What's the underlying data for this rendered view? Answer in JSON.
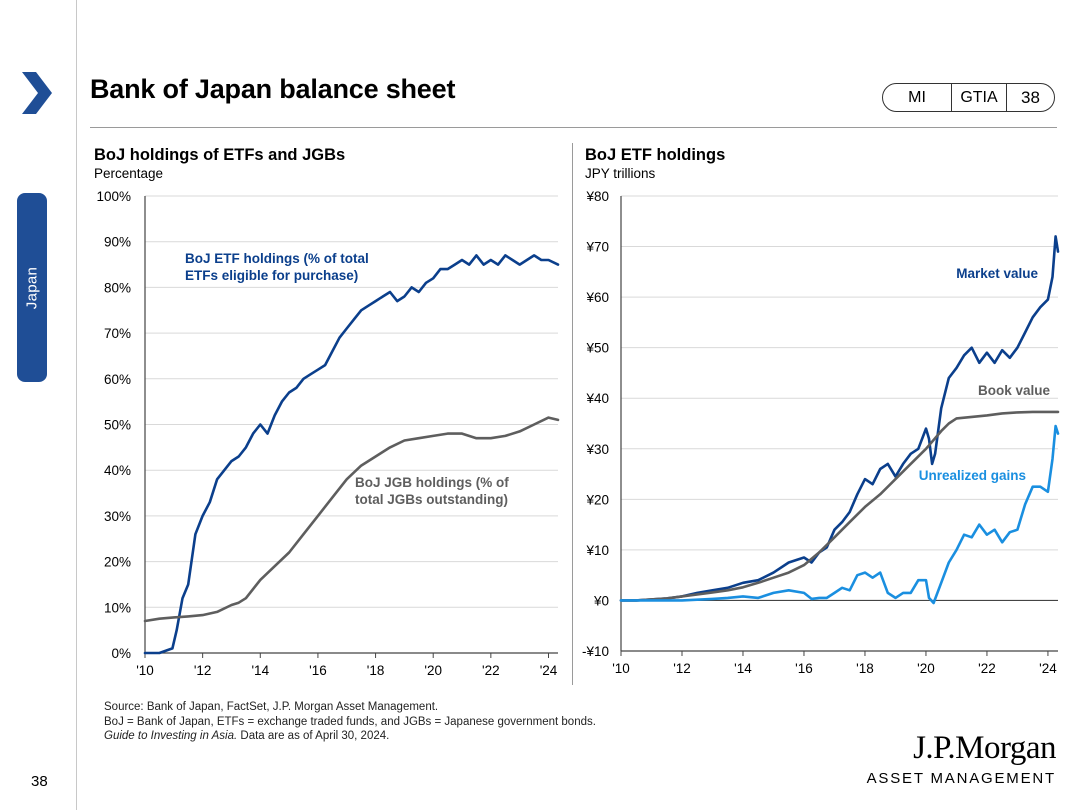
{
  "header": {
    "title": "Bank of Japan balance sheet",
    "pill": [
      "MI",
      "GTIA",
      "38"
    ],
    "side_tab": "Japan",
    "page_number": "38"
  },
  "colors": {
    "accent": "#1f4e96",
    "etf_blue": "#0b3f8c",
    "gray_line": "#5e5e5e",
    "light_blue": "#1a8fe0"
  },
  "chart_data": [
    {
      "type": "line",
      "title": "BoJ holdings of ETFs and JGBs",
      "subtitle": "Percentage",
      "x_tick_labels": [
        "'10",
        "'12",
        "'14",
        "'16",
        "'18",
        "'20",
        "'22",
        "'24"
      ],
      "x_ticks": [
        2010,
        2012,
        2014,
        2016,
        2018,
        2020,
        2022,
        2024
      ],
      "y_tick_labels": [
        "0%",
        "10%",
        "20%",
        "30%",
        "40%",
        "50%",
        "60%",
        "70%",
        "80%",
        "90%",
        "100%"
      ],
      "xlim": [
        2010,
        2024.33
      ],
      "ylim": [
        0,
        100
      ],
      "series": [
        {
          "name": "BoJ ETF holdings (% of total ETFs eligible for purchase)",
          "label_lines": [
            "BoJ ETF holdings (% of total",
            "ETFs eligible for purchase)"
          ],
          "color": "#0b3f8c",
          "x": [
            2010,
            2010.5,
            2010.95,
            2011.1,
            2011.3,
            2011.5,
            2011.75,
            2012,
            2012.25,
            2012.5,
            2012.75,
            2013,
            2013.25,
            2013.5,
            2013.75,
            2014,
            2014.25,
            2014.5,
            2014.75,
            2015,
            2015.25,
            2015.5,
            2015.75,
            2016,
            2016.25,
            2016.5,
            2016.75,
            2017,
            2017.25,
            2017.5,
            2017.75,
            2018,
            2018.25,
            2018.5,
            2018.75,
            2019,
            2019.25,
            2019.5,
            2019.75,
            2020,
            2020.25,
            2020.5,
            2020.75,
            2021,
            2021.25,
            2021.5,
            2021.75,
            2022,
            2022.25,
            2022.5,
            2022.75,
            2023,
            2023.25,
            2023.5,
            2023.75,
            2024,
            2024.33
          ],
          "y": [
            0,
            0,
            1,
            5,
            12,
            15,
            26,
            30,
            33,
            38,
            40,
            42,
            43,
            45,
            48,
            50,
            48,
            52,
            55,
            57,
            58,
            60,
            61,
            62,
            63,
            66,
            69,
            71,
            73,
            75,
            76,
            77,
            78,
            79,
            77,
            78,
            80,
            79,
            81,
            82,
            84,
            84,
            85,
            86,
            85,
            87,
            85,
            86,
            85,
            87,
            86,
            85,
            86,
            87,
            86,
            86,
            85
          ]
        },
        {
          "name": "BoJ JGB holdings (% of total JGBs outstanding)",
          "label_lines": [
            "BoJ JGB holdings (% of",
            "total JGBs outstanding)"
          ],
          "color": "#5e5e5e",
          "x": [
            2010,
            2010.5,
            2011,
            2011.5,
            2012,
            2012.5,
            2013,
            2013.25,
            2013.5,
            2014,
            2014.5,
            2015,
            2015.5,
            2016,
            2016.5,
            2017,
            2017.5,
            2018,
            2018.5,
            2019,
            2019.5,
            2020,
            2020.5,
            2021,
            2021.5,
            2022,
            2022.5,
            2023,
            2023.5,
            2024,
            2024.33
          ],
          "y": [
            7,
            7.5,
            7.8,
            8,
            8.3,
            9,
            10.5,
            11,
            12,
            16,
            19,
            22,
            26,
            30,
            34,
            38,
            41,
            43,
            45,
            46.5,
            47,
            47.5,
            48,
            48,
            47,
            47,
            47.5,
            48.5,
            50,
            51.5,
            51
          ]
        }
      ]
    },
    {
      "type": "line",
      "title": "BoJ ETF holdings",
      "subtitle": "JPY trillions",
      "x_tick_labels": [
        "'10",
        "'12",
        "'14",
        "'16",
        "'18",
        "'20",
        "'22",
        "'24"
      ],
      "x_ticks": [
        2010,
        2012,
        2014,
        2016,
        2018,
        2020,
        2022,
        2024
      ],
      "y_tick_labels": [
        "-¥10",
        "¥0",
        "¥10",
        "¥20",
        "¥30",
        "¥40",
        "¥50",
        "¥60",
        "¥70",
        "¥80"
      ],
      "y_ticks": [
        -10,
        0,
        10,
        20,
        30,
        40,
        50,
        60,
        70,
        80
      ],
      "xlim": [
        2010,
        2024.33
      ],
      "ylim": [
        -10,
        80
      ],
      "series": [
        {
          "name": "Market value",
          "color": "#0b3f8c",
          "x": [
            2010,
            2010.5,
            2011,
            2011.5,
            2012,
            2012.5,
            2013,
            2013.5,
            2014,
            2014.5,
            2015,
            2015.5,
            2016,
            2016.25,
            2016.5,
            2016.75,
            2017,
            2017.25,
            2017.5,
            2017.75,
            2018,
            2018.25,
            2018.5,
            2018.75,
            2019,
            2019.25,
            2019.5,
            2019.75,
            2020,
            2020.1,
            2020.2,
            2020.3,
            2020.5,
            2020.75,
            2021,
            2021.25,
            2021.5,
            2021.75,
            2022,
            2022.25,
            2022.5,
            2022.75,
            2023,
            2023.25,
            2023.5,
            2023.75,
            2024,
            2024.15,
            2024.25,
            2024.33
          ],
          "y": [
            0,
            0,
            0.2,
            0.4,
            0.8,
            1.5,
            2,
            2.5,
            3.5,
            4,
            5.5,
            7.5,
            8.5,
            7.5,
            9.5,
            10.5,
            14,
            15.5,
            17.5,
            21,
            24,
            23,
            26,
            27,
            24.5,
            27,
            29,
            30,
            34,
            32,
            27,
            29,
            38,
            44,
            46,
            48.5,
            50,
            47,
            49,
            47,
            49.5,
            48,
            50,
            53,
            56,
            58,
            59.5,
            64,
            72,
            69
          ]
        },
        {
          "name": "Book value",
          "color": "#5e5e5e",
          "x": [
            2010,
            2010.5,
            2011,
            2011.5,
            2012,
            2012.5,
            2013,
            2013.5,
            2014,
            2014.5,
            2015,
            2015.5,
            2016,
            2016.5,
            2017,
            2017.5,
            2018,
            2018.5,
            2019,
            2019.5,
            2020,
            2020.5,
            2020.75,
            2021,
            2021.5,
            2022,
            2022.5,
            2023,
            2023.5,
            2024,
            2024.33
          ],
          "y": [
            0,
            0,
            0.2,
            0.4,
            0.8,
            1.2,
            1.6,
            2,
            2.6,
            3.5,
            4.5,
            5.5,
            7,
            9.5,
            12.5,
            15.5,
            18.5,
            21,
            24,
            27,
            30,
            33.5,
            35,
            36,
            36.3,
            36.6,
            37,
            37.2,
            37.3,
            37.3,
            37.3
          ]
        },
        {
          "name": "Unrealized gains",
          "color": "#1a8fe0",
          "x": [
            2010,
            2011,
            2012,
            2013,
            2013.5,
            2014,
            2014.5,
            2015,
            2015.5,
            2016,
            2016.25,
            2016.5,
            2016.75,
            2017,
            2017.25,
            2017.5,
            2017.75,
            2018,
            2018.25,
            2018.5,
            2018.75,
            2019,
            2019.25,
            2019.5,
            2019.75,
            2020,
            2020.1,
            2020.25,
            2020.5,
            2020.75,
            2021,
            2021.25,
            2021.5,
            2021.75,
            2022,
            2022.25,
            2022.5,
            2022.75,
            2023,
            2023.25,
            2023.5,
            2023.75,
            2024,
            2024.15,
            2024.25,
            2024.33
          ],
          "y": [
            0,
            0,
            0,
            0.3,
            0.5,
            0.8,
            0.5,
            1.5,
            2,
            1.5,
            0.3,
            0.5,
            0.5,
            1.5,
            2.5,
            2,
            5,
            5.5,
            4.5,
            5.5,
            1.5,
            0.5,
            1.5,
            1.5,
            4,
            4,
            0.5,
            -0.5,
            3.5,
            7.5,
            10,
            13,
            12.5,
            15,
            13,
            14,
            11.5,
            13.5,
            14,
            19,
            22.5,
            22.5,
            21.5,
            28,
            34.5,
            33
          ]
        }
      ]
    }
  ],
  "footnote": {
    "line1": "Source: Bank of Japan, FactSet, J.P. Morgan Asset Management.",
    "line2": "BoJ = Bank of Japan, ETFs = exchange traded funds, and JGBs = Japanese government bonds.",
    "line3_italic": "Guide to Investing in Asia.",
    "line3_rest": " Data are as of April 30, 2024."
  },
  "logo": {
    "line1": "J.P.Morgan",
    "line2": "ASSET MANAGEMENT"
  }
}
